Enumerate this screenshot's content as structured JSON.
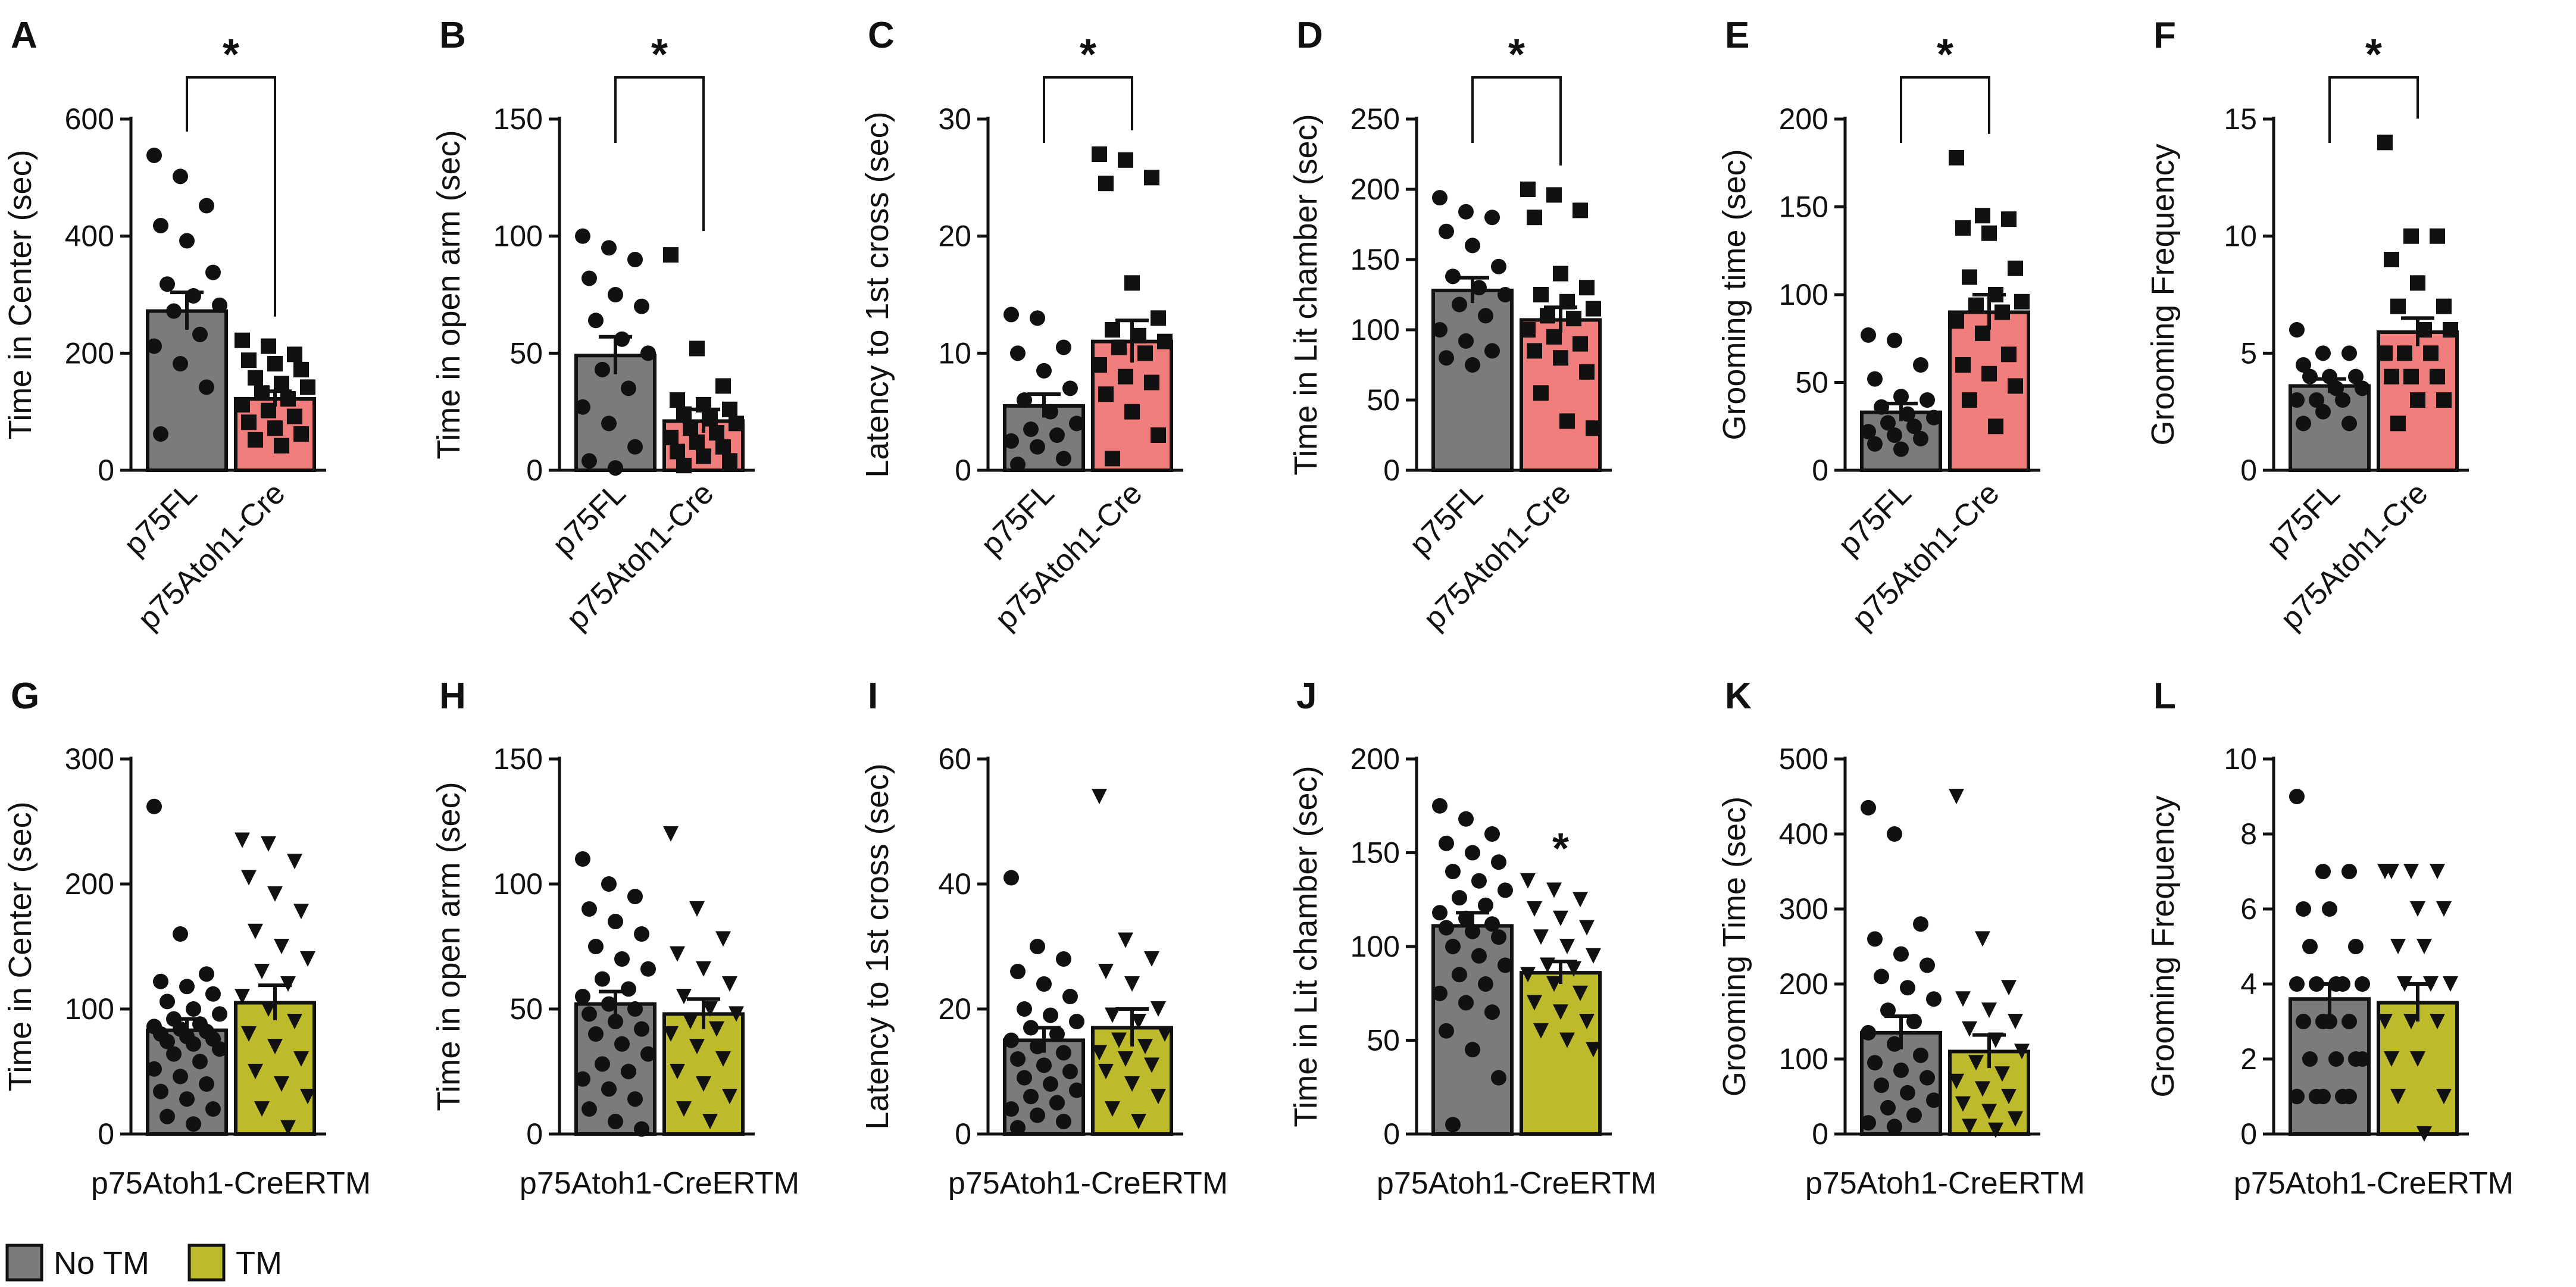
{
  "legend": {
    "items": [
      {
        "label": "No TM",
        "color": "#7b7b7b"
      },
      {
        "label": "TM",
        "color": "#bdbb2c"
      }
    ]
  },
  "colors": {
    "gray": "#7b7b7b",
    "pink": "#f27d7d",
    "olive": "#bdbb2c",
    "point": "#111111"
  },
  "chart_data": [
    {
      "type": "bar",
      "panel": "A",
      "ylabel": "Time in  Center (sec)",
      "ylim": [
        0,
        600
      ],
      "yticks": [
        0,
        200,
        400,
        600
      ],
      "categories": [
        "p75FL",
        "p75Atoh1-Cre"
      ],
      "category_style": "rotated",
      "significance": {
        "label": "*",
        "style": "bracket"
      },
      "series": [
        {
          "name": "p75FL",
          "color": "gray",
          "marker": "circle",
          "mean": 272,
          "sem": 32,
          "points": [
            538,
            502,
            452,
            418,
            392,
            338,
            318,
            298,
            282,
            272,
            232,
            212,
            182,
            142,
            62
          ]
        },
        {
          "name": "p75Atoh1-Cre",
          "color": "pink",
          "marker": "square",
          "mean": 122,
          "sem": 13,
          "points": [
            222,
            212,
            198,
            188,
            182,
            172,
            158,
            148,
            142,
            132,
            122,
            112,
            102,
            92,
            82,
            72,
            62,
            52,
            42
          ]
        }
      ]
    },
    {
      "type": "bar",
      "panel": "B",
      "ylabel": "Time in  open arm (sec)",
      "ylim": [
        0,
        150
      ],
      "yticks": [
        0,
        50,
        100,
        150
      ],
      "categories": [
        "p75FL",
        "p75Atoh1-Cre"
      ],
      "category_style": "rotated",
      "significance": {
        "label": "*",
        "style": "bracket"
      },
      "series": [
        {
          "name": "p75FL",
          "color": "gray",
          "marker": "circle",
          "mean": 49,
          "sem": 8,
          "points": [
            100,
            95,
            90,
            82,
            75,
            70,
            64,
            56,
            50,
            43,
            35,
            27,
            20,
            10,
            4,
            1
          ]
        },
        {
          "name": "p75Atoh1-Cre",
          "color": "pink",
          "marker": "square",
          "mean": 21,
          "sem": 5,
          "points": [
            92,
            52,
            36,
            30,
            28,
            26,
            24,
            22,
            20,
            18,
            16,
            14,
            12,
            10,
            8,
            6,
            4,
            2
          ]
        }
      ]
    },
    {
      "type": "bar",
      "panel": "C",
      "ylabel": "Latency to 1st cross (sec)",
      "ylim": [
        0,
        30
      ],
      "yticks": [
        0,
        10,
        20,
        30
      ],
      "categories": [
        "p75FL",
        "p75Atoh1-Cre"
      ],
      "category_style": "rotated",
      "significance": {
        "label": "*",
        "style": "bracket"
      },
      "series": [
        {
          "name": "p75FL",
          "color": "gray",
          "marker": "circle",
          "mean": 5.5,
          "sem": 1.0,
          "points": [
            13.3,
            13,
            10.5,
            10,
            8.5,
            7,
            6,
            5,
            4,
            3.5,
            3,
            2.5,
            2,
            1,
            0.5
          ]
        },
        {
          "name": "p75Atoh1-Cre",
          "color": "pink",
          "marker": "square",
          "mean": 11,
          "sem": 1.8,
          "points": [
            27,
            26.5,
            25,
            24.5,
            16,
            13,
            12,
            11.5,
            11,
            10.5,
            10,
            9,
            8,
            7.5,
            6.5,
            5,
            3,
            1
          ]
        }
      ]
    },
    {
      "type": "bar",
      "panel": "D",
      "ylabel": "Time in Lit chamber (sec)",
      "ylim": [
        0,
        250
      ],
      "yticks": [
        0,
        50,
        100,
        150,
        200,
        250
      ],
      "categories": [
        "p75FL",
        "p75Atoh1-Cre"
      ],
      "category_style": "rotated",
      "significance": {
        "label": "*",
        "style": "bracket"
      },
      "series": [
        {
          "name": "p75FL",
          "color": "gray",
          "marker": "circle",
          "mean": 128,
          "sem": 9,
          "points": [
            194,
            184,
            180,
            170,
            160,
            145,
            138,
            130,
            125,
            118,
            110,
            100,
            92,
            85,
            80,
            75
          ]
        },
        {
          "name": "p75Atoh1-Cre",
          "color": "pink",
          "marker": "square",
          "mean": 107,
          "sem": 9,
          "points": [
            200,
            196,
            185,
            180,
            140,
            130,
            125,
            120,
            115,
            110,
            108,
            100,
            95,
            90,
            85,
            80,
            70,
            55,
            35,
            30
          ]
        }
      ]
    },
    {
      "type": "bar",
      "panel": "E",
      "ylabel": "Grooming time (sec)",
      "ylim": [
        0,
        200
      ],
      "yticks": [
        0,
        50,
        100,
        150,
        200
      ],
      "categories": [
        "p75FL",
        "p75Atoh1-Cre"
      ],
      "category_style": "rotated",
      "significance": {
        "label": "*",
        "style": "bracket"
      },
      "series": [
        {
          "name": "p75FL",
          "color": "gray",
          "marker": "circle",
          "mean": 33,
          "sem": 5,
          "points": [
            77,
            74,
            60,
            52,
            42,
            40,
            36,
            32,
            30,
            27,
            25,
            22,
            20,
            18,
            15,
            12
          ]
        },
        {
          "name": "p75Atoh1-Cre",
          "color": "pink",
          "marker": "square",
          "mean": 90,
          "sem": 10,
          "points": [
            178,
            145,
            143,
            138,
            135,
            115,
            110,
            100,
            96,
            94,
            90,
            85,
            78,
            66,
            60,
            55,
            48,
            40,
            25
          ]
        }
      ]
    },
    {
      "type": "bar",
      "panel": "F",
      "ylabel": "Grooming  Frequency",
      "ylim": [
        0,
        15
      ],
      "yticks": [
        0,
        5,
        10,
        15
      ],
      "categories": [
        "p75FL",
        "p75Atoh1-Cre"
      ],
      "category_style": "rotated",
      "significance": {
        "label": "*",
        "style": "bracket"
      },
      "series": [
        {
          "name": "p75FL",
          "color": "gray",
          "marker": "circle",
          "mean": 3.6,
          "sem": 0.3,
          "points": [
            6,
            5,
            5,
            4.5,
            4,
            4,
            4,
            3.5,
            3.5,
            3,
            3,
            3,
            2.5,
            2,
            2
          ]
        },
        {
          "name": "p75Atoh1-Cre",
          "color": "pink",
          "marker": "square",
          "mean": 5.9,
          "sem": 0.6,
          "points": [
            14,
            10,
            10,
            9,
            8,
            7,
            7,
            6,
            6,
            5,
            5,
            5,
            4,
            4,
            4,
            3,
            3,
            2
          ]
        }
      ]
    },
    {
      "type": "bar",
      "panel": "G",
      "ylabel": "Time in  Center (sec)",
      "ylim": [
        0,
        300
      ],
      "yticks": [
        0,
        100,
        200,
        300
      ],
      "group_label": "p75Atoh1-CreERTM",
      "category_style": "group",
      "significance": null,
      "series": [
        {
          "name": "No TM",
          "color": "gray",
          "marker": "circle",
          "mean": 83,
          "sem": 9,
          "points": [
            262,
            160,
            128,
            122,
            118,
            112,
            106,
            100,
            96,
            92,
            88,
            86,
            84,
            82,
            80,
            78,
            76,
            74,
            72,
            68,
            64,
            58,
            52,
            46,
            40,
            34,
            28,
            20,
            14,
            8
          ]
        },
        {
          "name": "TM",
          "color": "olive",
          "marker": "triangle",
          "mean": 105,
          "sem": 14,
          "points": [
            235,
            232,
            218,
            205,
            192,
            178,
            162,
            150,
            140,
            130,
            120,
            110,
            100,
            90,
            80,
            70,
            60,
            50,
            40,
            30,
            20,
            5
          ]
        }
      ]
    },
    {
      "type": "bar",
      "panel": "H",
      "ylabel": "Time in open arm (sec)",
      "ylim": [
        0,
        150
      ],
      "yticks": [
        0,
        50,
        100,
        150
      ],
      "group_label": "p75Atoh1-CreERTM",
      "category_style": "group",
      "significance": null,
      "series": [
        {
          "name": "No TM",
          "color": "gray",
          "marker": "circle",
          "mean": 52,
          "sem": 5,
          "points": [
            110,
            100,
            95,
            90,
            85,
            80,
            75,
            70,
            66,
            62,
            58,
            55,
            52,
            50,
            48,
            45,
            42,
            40,
            36,
            32,
            28,
            25,
            22,
            18,
            14,
            10,
            5,
            2
          ]
        },
        {
          "name": "TM",
          "color": "olive",
          "marker": "triangle",
          "mean": 48,
          "sem": 6,
          "points": [
            120,
            90,
            78,
            72,
            66,
            60,
            55,
            50,
            48,
            45,
            42,
            40,
            35,
            30,
            25,
            20,
            15,
            10,
            5
          ]
        }
      ]
    },
    {
      "type": "bar",
      "panel": "I",
      "ylabel": "Latency to 1st cross (sec)",
      "ylim": [
        0,
        60
      ],
      "yticks": [
        0,
        20,
        40,
        60
      ],
      "group_label": "p75Atoh1-CreERTM",
      "category_style": "group",
      "significance": null,
      "series": [
        {
          "name": "No TM",
          "color": "gray",
          "marker": "circle",
          "mean": 15,
          "sem": 2,
          "points": [
            41,
            30,
            28,
            26,
            24,
            22,
            20,
            19,
            18,
            17,
            16,
            15,
            14,
            13,
            12,
            11,
            10,
            9,
            8,
            7,
            6,
            5,
            4,
            3,
            2,
            1
          ]
        },
        {
          "name": "TM",
          "color": "olive",
          "marker": "triangle",
          "mean": 17,
          "sem": 3,
          "points": [
            54,
            31,
            28,
            26,
            24,
            20,
            19,
            18,
            16,
            15,
            14,
            13,
            12,
            11,
            10,
            8,
            6,
            4,
            2
          ]
        }
      ]
    },
    {
      "type": "bar",
      "panel": "J",
      "ylabel": "Time in Lit chamber (sec)",
      "ylim": [
        0,
        200
      ],
      "yticks": [
        0,
        50,
        100,
        150,
        200
      ],
      "group_label": "p75Atoh1-CreERTM",
      "category_style": "group",
      "significance": {
        "label": "*",
        "style": "above-second"
      },
      "series": [
        {
          "name": "No TM",
          "color": "gray",
          "marker": "circle",
          "mean": 111,
          "sem": 7,
          "points": [
            175,
            168,
            160,
            155,
            150,
            145,
            140,
            135,
            130,
            126,
            122,
            118,
            115,
            112,
            110,
            108,
            105,
            100,
            95,
            90,
            85,
            80,
            75,
            70,
            65,
            55,
            45,
            30,
            5
          ]
        },
        {
          "name": "TM",
          "color": "olive",
          "marker": "triangle",
          "mean": 86,
          "sem": 6,
          "points": [
            135,
            130,
            125,
            120,
            115,
            110,
            105,
            100,
            95,
            90,
            88,
            85,
            80,
            75,
            70,
            65,
            60,
            55,
            50,
            45
          ]
        }
      ]
    },
    {
      "type": "bar",
      "panel": "K",
      "ylabel": "Grooming Time (sec)",
      "ylim": [
        0,
        500
      ],
      "yticks": [
        0,
        100,
        200,
        300,
        400,
        500
      ],
      "group_label": "p75Atoh1-CreERTM",
      "category_style": "group",
      "significance": null,
      "series": [
        {
          "name": "No TM",
          "color": "gray",
          "marker": "circle",
          "mean": 135,
          "sem": 22,
          "points": [
            435,
            400,
            280,
            260,
            240,
            225,
            210,
            195,
            180,
            165,
            150,
            135,
            120,
            105,
            95,
            85,
            75,
            65,
            55,
            45,
            35,
            25,
            15,
            10
          ]
        },
        {
          "name": "TM",
          "color": "olive",
          "marker": "triangle",
          "mean": 110,
          "sem": 22,
          "points": [
            450,
            260,
            195,
            180,
            165,
            150,
            140,
            125,
            110,
            95,
            80,
            70,
            60,
            50,
            40,
            30,
            20,
            10,
            5
          ]
        }
      ]
    },
    {
      "type": "bar",
      "panel": "L",
      "ylabel": "Grooming Frequency",
      "ylim": [
        0,
        10
      ],
      "yticks": [
        0,
        2,
        4,
        6,
        8,
        10
      ],
      "group_label": "p75Atoh1-CreERTM",
      "category_style": "group",
      "significance": null,
      "series": [
        {
          "name": "No TM",
          "color": "gray",
          "marker": "circle",
          "mean": 3.6,
          "sem": 0.4,
          "points": [
            9,
            7,
            7,
            6,
            6,
            5,
            5,
            4,
            4,
            4,
            4,
            4,
            3,
            3,
            3,
            3,
            2,
            2,
            2,
            2,
            1,
            1,
            1,
            1,
            1
          ]
        },
        {
          "name": "TM",
          "color": "olive",
          "marker": "triangle",
          "mean": 3.5,
          "sem": 0.5,
          "points": [
            7,
            7,
            7,
            7,
            6,
            6,
            5,
            5,
            4,
            4,
            4,
            3,
            3,
            3,
            2,
            2,
            1,
            1,
            0
          ]
        }
      ]
    }
  ]
}
